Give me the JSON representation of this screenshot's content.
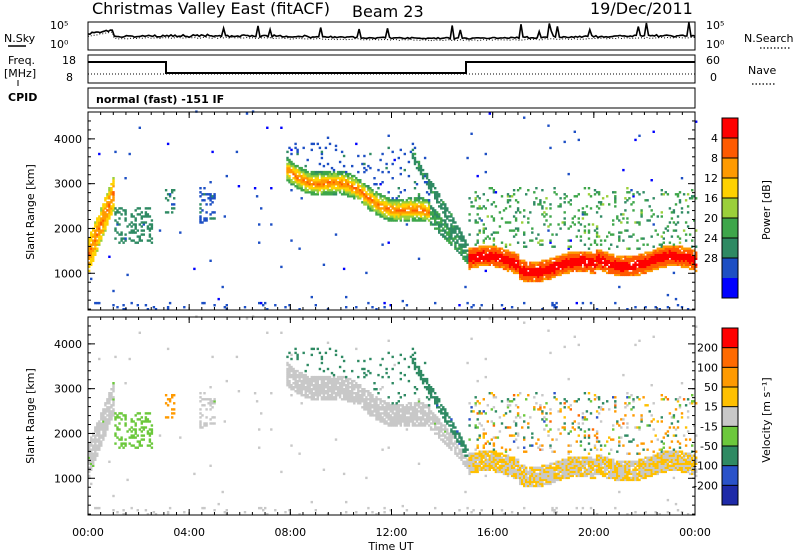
{
  "header": {
    "station": "Christmas Valley East (fitACF)",
    "beam": "Beam 23",
    "date": "19/Dec/2011"
  },
  "status_panel": {
    "nsky_label": "N.Sky",
    "nsearch_label": "N.Search",
    "noise_ticks_left": [
      "10^5",
      "10^0"
    ],
    "noise_ticks_right": [
      "10^5",
      "10^0"
    ],
    "freq_label": "Freq.",
    "freq_unit": "[MHz]",
    "freq_ticks": [
      "18",
      "8"
    ],
    "nave_label": "Nave",
    "nave_ticks": [
      "60",
      "0"
    ],
    "cpid_label": "CPID",
    "cpid_text": "normal (fast) -151 IF"
  },
  "colors": {
    "power_scale": [
      "#0000ff",
      "#1d4fc4",
      "#2f8a63",
      "#3ea64a",
      "#9bd03a",
      "#ffd200",
      "#ff9a00",
      "#ff5a00",
      "#ff0000"
    ],
    "velocity_scale": [
      "#1e2aa8",
      "#2a52c9",
      "#2f8a63",
      "#6cc83c",
      "#c8c8c8",
      "#ffc000",
      "#ff9a00",
      "#ff6a00",
      "#ff0000"
    ]
  },
  "chart_data": [
    {
      "type": "heatmap",
      "panel": "power",
      "ylabel": "Slant Range [km]",
      "xlabel": "Time UT",
      "x_ticks": [
        "00:00",
        "04:00",
        "08:00",
        "12:00",
        "16:00",
        "20:00",
        "00:00"
      ],
      "xlim_hours": [
        0,
        24
      ],
      "y_ticks": [
        1000,
        2000,
        3000,
        4000
      ],
      "ylim": [
        180,
        4600
      ],
      "colorbar": {
        "label": "Power [dB]",
        "ticks": [
          "4",
          "8",
          "12",
          "16",
          "20",
          "24",
          "28"
        ],
        "range": [
          0,
          30
        ]
      }
    },
    {
      "type": "heatmap",
      "panel": "velocity",
      "ylabel": "Slant Range [km]",
      "xlabel": "Time UT",
      "x_ticks": [
        "00:00",
        "04:00",
        "08:00",
        "12:00",
        "16:00",
        "20:00",
        "00:00"
      ],
      "xlim_hours": [
        0,
        24
      ],
      "y_ticks": [
        1000,
        2000,
        3000,
        4000
      ],
      "ylim": [
        180,
        4600
      ],
      "colorbar": {
        "label": "Velocity [m s^-1]",
        "ticks": [
          "200",
          "100",
          "50",
          "15",
          "-15",
          "-50",
          "-100",
          "-200"
        ],
        "range": [
          -250,
          250
        ]
      }
    }
  ],
  "time_axis": {
    "label": "Time UT",
    "ticks": [
      "00:00",
      "04:00",
      "08:00",
      "12:00",
      "16:00",
      "20:00",
      "00:00"
    ]
  }
}
